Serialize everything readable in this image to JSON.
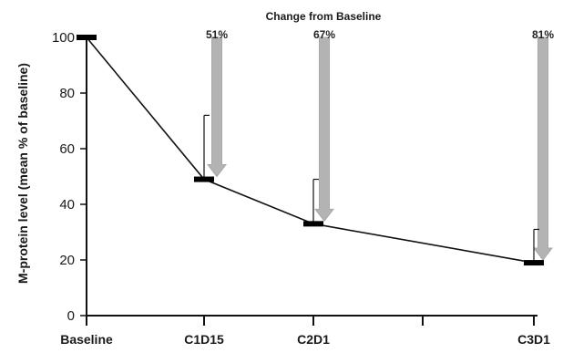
{
  "chart_data": {
    "type": "line",
    "title": "",
    "annotation_title": "Change from Baseline",
    "xlabel": "",
    "ylabel": "M-protein level (mean % of baseline)",
    "categories": [
      "Baseline",
      "C1D15",
      "C2D1",
      "C3D1"
    ],
    "minor_ticks_after": [
      "C1D15",
      "C2D1"
    ],
    "values": [
      100,
      49,
      33,
      19
    ],
    "error_upper": [
      100,
      72,
      49,
      31
    ],
    "ylim": [
      0,
      100
    ],
    "yticks": [
      0,
      20,
      40,
      60,
      80,
      100
    ],
    "grid": false,
    "legend": "none",
    "arrows": [
      {
        "category": "C1D15",
        "label": "51%"
      },
      {
        "category": "C2D1",
        "label": "67%"
      },
      {
        "category": "C3D1",
        "label": "81%"
      }
    ],
    "colors": {
      "line": "#111111",
      "marker": "#000000",
      "arrow": "#b3b3b3",
      "text": "#1a1a1a"
    }
  }
}
